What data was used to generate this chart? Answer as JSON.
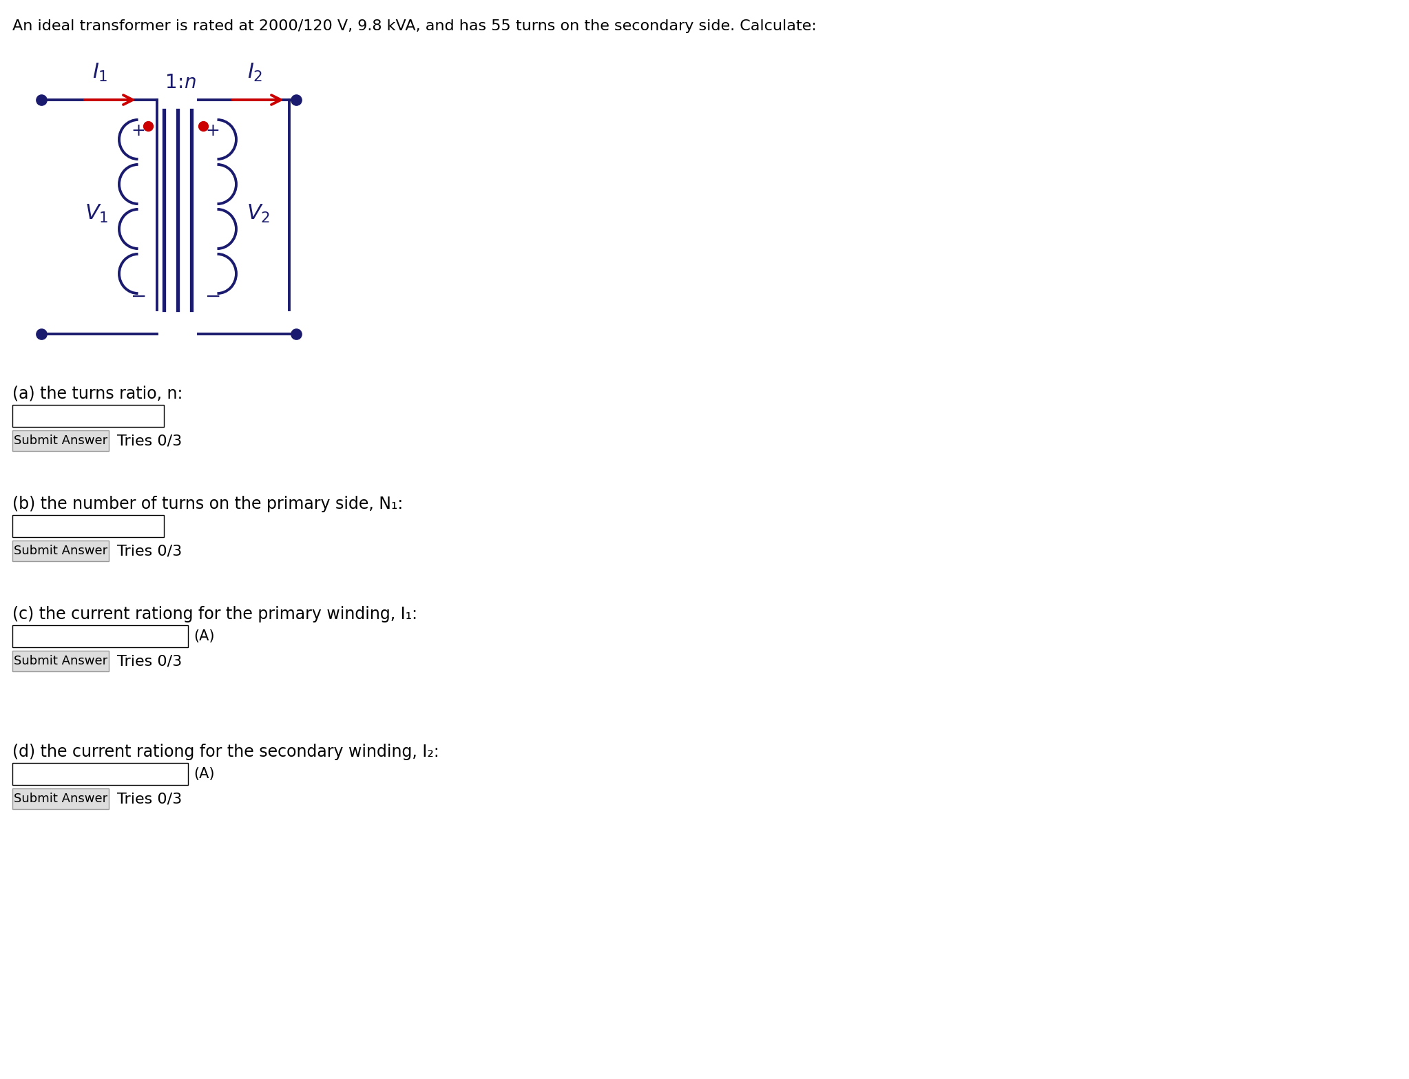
{
  "title_text": "An ideal transformer is rated at 2000/120 V, 9.8 kVA, and has 55 turns on the secondary side. Calculate:",
  "circuit_color": "#1a1a6e",
  "arrow_color": "#cc0000",
  "dot_color": "#cc0000",
  "bg_color": "#ffffff",
  "questions": [
    "(a) the turns ratio, n:",
    "(b) the number of turns on the primary side, N₁:",
    "(c) the current rationg for the primary winding, I₁:",
    "(d) the current rationg for the secondary winding, I₂:"
  ],
  "unit_c": "(A)",
  "unit_d": "(A)",
  "tries_text": "Tries 0/3",
  "submit_text": "Submit Answer",
  "fig_w": 20.46,
  "fig_h": 15.67,
  "dpi": 100
}
